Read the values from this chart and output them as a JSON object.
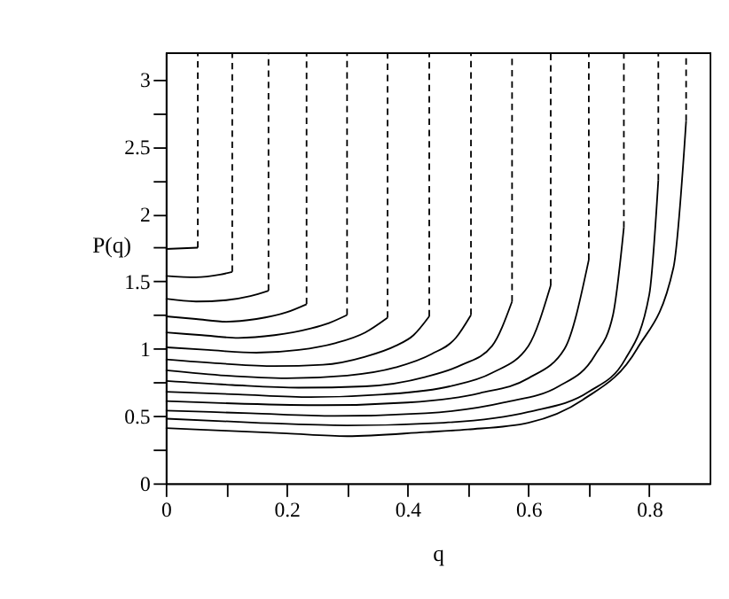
{
  "chart_data": {
    "type": "line",
    "xlabel": "q",
    "ylabel": "P(q)",
    "xlim": [
      0,
      0.9
    ],
    "ylim": [
      0,
      3.2
    ],
    "xticks": [
      0,
      {
        "value": 0.1,
        "label": null
      },
      0.2,
      {
        "value": 0.3,
        "label": null
      },
      0.4,
      {
        "value": 0.5,
        "label": null
      },
      0.6,
      {
        "value": 0.7,
        "label": null
      },
      0.8
    ],
    "yticks": [
      0,
      {
        "value": 0.25,
        "label": null
      },
      0.5,
      {
        "value": 0.75,
        "label": null
      },
      1,
      {
        "value": 1.25,
        "label": null
      },
      1.5,
      {
        "value": 1.75,
        "label": null
      },
      2,
      {
        "value": 2.25,
        "label": null
      },
      2.5,
      {
        "value": 2.75,
        "label": null
      },
      3
    ],
    "grid": false,
    "marker": "none",
    "series": [
      {
        "color": "#000000",
        "line_style": "solid",
        "x": [
          0,
          0.053
        ],
        "values": [
          1.74,
          1.75
        ]
      },
      {
        "color": "#000000",
        "line_style": "dashed",
        "x": [
          0.053,
          0.053
        ],
        "values": [
          1.75,
          3.2
        ]
      },
      {
        "color": "#000000",
        "line_style": "solid",
        "x": [
          0,
          0.05,
          0.09,
          0.11
        ],
        "values": [
          1.54,
          1.53,
          1.55,
          1.57
        ]
      },
      {
        "color": "#000000",
        "line_style": "dashed",
        "x": [
          0.11,
          0.11
        ],
        "values": [
          1.57,
          3.2
        ]
      },
      {
        "color": "#000000",
        "line_style": "solid",
        "x": [
          0,
          0.05,
          0.1,
          0.14,
          0.17
        ],
        "values": [
          1.37,
          1.35,
          1.36,
          1.39,
          1.43
        ]
      },
      {
        "color": "#000000",
        "line_style": "dashed",
        "x": [
          0.17,
          0.17
        ],
        "values": [
          1.43,
          3.2
        ]
      },
      {
        "color": "#000000",
        "line_style": "solid",
        "x": [
          0,
          0.05,
          0.1,
          0.15,
          0.2,
          0.233
        ],
        "values": [
          1.24,
          1.22,
          1.2,
          1.22,
          1.27,
          1.33
        ]
      },
      {
        "color": "#000000",
        "line_style": "dashed",
        "x": [
          0.233,
          0.233
        ],
        "values": [
          1.33,
          3.2
        ]
      },
      {
        "color": "#000000",
        "line_style": "solid",
        "x": [
          0,
          0.06,
          0.12,
          0.18,
          0.24,
          0.27,
          0.3
        ],
        "values": [
          1.12,
          1.1,
          1.08,
          1.1,
          1.15,
          1.19,
          1.25
        ]
      },
      {
        "color": "#000000",
        "line_style": "dashed",
        "x": [
          0.3,
          0.3
        ],
        "values": [
          1.25,
          3.2
        ]
      },
      {
        "color": "#000000",
        "line_style": "solid",
        "x": [
          0,
          0.07,
          0.15,
          0.22,
          0.28,
          0.33,
          0.367
        ],
        "values": [
          1.01,
          0.99,
          0.97,
          0.99,
          1.04,
          1.12,
          1.23
        ]
      },
      {
        "color": "#000000",
        "line_style": "dashed",
        "x": [
          0.367,
          0.367
        ],
        "values": [
          1.23,
          3.2
        ]
      },
      {
        "color": "#000000",
        "line_style": "solid",
        "x": [
          0,
          0.09,
          0.18,
          0.26,
          0.33,
          0.38,
          0.41,
          0.436
        ],
        "values": [
          0.92,
          0.89,
          0.87,
          0.88,
          0.94,
          1.02,
          1.1,
          1.24
        ]
      },
      {
        "color": "#000000",
        "line_style": "dashed",
        "x": [
          0.436,
          0.436
        ],
        "values": [
          1.24,
          3.2
        ]
      },
      {
        "color": "#000000",
        "line_style": "solid",
        "x": [
          0,
          0.1,
          0.2,
          0.3,
          0.38,
          0.44,
          0.48,
          0.505
        ],
        "values": [
          0.84,
          0.8,
          0.78,
          0.8,
          0.86,
          0.96,
          1.08,
          1.25
        ]
      },
      {
        "color": "#000000",
        "line_style": "dashed",
        "x": [
          0.505,
          0.505
        ],
        "values": [
          1.25,
          3.2
        ]
      },
      {
        "color": "#000000",
        "line_style": "solid",
        "x": [
          0,
          0.11,
          0.22,
          0.33,
          0.43,
          0.49,
          0.54,
          0.573
        ],
        "values": [
          0.76,
          0.73,
          0.71,
          0.72,
          0.79,
          0.88,
          1.02,
          1.35
        ]
      },
      {
        "color": "#000000",
        "line_style": "dashed",
        "x": [
          0.573,
          0.573
        ],
        "values": [
          1.35,
          3.2
        ]
      },
      {
        "color": "#000000",
        "line_style": "solid",
        "x": [
          0,
          0.12,
          0.24,
          0.36,
          0.47,
          0.54,
          0.6,
          0.637
        ],
        "values": [
          0.68,
          0.66,
          0.64,
          0.66,
          0.72,
          0.82,
          1.02,
          1.47
        ]
      },
      {
        "color": "#000000",
        "line_style": "dashed",
        "x": [
          0.637,
          0.637
        ],
        "values": [
          1.47,
          3.2
        ]
      },
      {
        "color": "#000000",
        "line_style": "solid",
        "x": [
          0,
          0.13,
          0.26,
          0.4,
          0.52,
          0.6,
          0.66,
          0.7
        ],
        "values": [
          0.61,
          0.59,
          0.58,
          0.6,
          0.67,
          0.78,
          1.0,
          1.66
        ]
      },
      {
        "color": "#000000",
        "line_style": "dashed",
        "x": [
          0.7,
          0.7
        ],
        "values": [
          1.66,
          3.2
        ]
      },
      {
        "color": "#000000",
        "line_style": "solid",
        "x": [
          0,
          0.14,
          0.28,
          0.43,
          0.56,
          0.65,
          0.71,
          0.74,
          0.758
        ],
        "values": [
          0.54,
          0.52,
          0.5,
          0.52,
          0.6,
          0.72,
          0.95,
          1.25,
          1.9
        ]
      },
      {
        "color": "#000000",
        "line_style": "dashed",
        "x": [
          0.758,
          0.758
        ],
        "values": [
          1.9,
          3.2
        ]
      },
      {
        "color": "#000000",
        "line_style": "solid",
        "x": [
          0,
          0.15,
          0.3,
          0.46,
          0.6,
          0.7,
          0.76,
          0.8,
          0.815
        ],
        "values": [
          0.48,
          0.45,
          0.43,
          0.45,
          0.53,
          0.68,
          0.92,
          1.4,
          2.25
        ]
      },
      {
        "color": "#000000",
        "line_style": "dashed",
        "x": [
          0.815,
          0.815
        ],
        "values": [
          2.25,
          3.2
        ]
      },
      {
        "color": "#000000",
        "line_style": "solid",
        "x": [
          0,
          0.1,
          0.2,
          0.3,
          0.43,
          0.5,
          0.6,
          0.69,
          0.78,
          0.84,
          0.861
        ],
        "values": [
          0.41,
          0.39,
          0.37,
          0.35,
          0.38,
          0.4,
          0.45,
          0.62,
          1.0,
          1.6,
          2.69
        ]
      },
      {
        "color": "#000000",
        "line_style": "dashed",
        "x": [
          0.861,
          0.861
        ],
        "values": [
          2.69,
          3.2
        ]
      }
    ]
  }
}
